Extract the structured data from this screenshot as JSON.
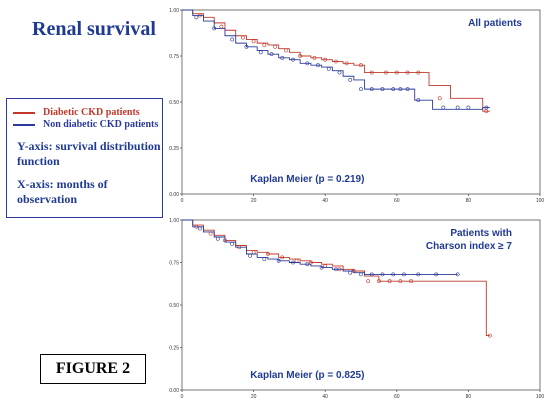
{
  "title": "Renal survival",
  "legend": [
    {
      "label": "Diabetic CKD patients",
      "color": "#c0392b"
    },
    {
      "label": "Non diabetic CKD patients",
      "color": "#2b3a9a"
    }
  ],
  "axis_notes": {
    "y": "Y-axis: survival distribution function",
    "x": "X-axis: months of observation"
  },
  "figure_label": "FIGURE 2",
  "colors": {
    "diabetic": "#c0392b",
    "nondiabetic": "#2b3a9a",
    "text": "#1f3a93"
  },
  "chart_data": [
    {
      "type": "line",
      "title": "All patients",
      "annotation": "Kaplan Meier (p = 0.219)",
      "xlim": [
        0,
        100
      ],
      "ylim": [
        0,
        1
      ],
      "xticks": [
        "0",
        "20",
        "40",
        "60",
        "80",
        "100"
      ],
      "yticks": [
        "0.00",
        "0.25",
        "0.50",
        "0.75",
        "1.00"
      ],
      "series": [
        {
          "name": "Diabetic CKD patients",
          "color": "#c0392b",
          "x": [
            0,
            3,
            6,
            9,
            12,
            15,
            18,
            21,
            24,
            27,
            30,
            33,
            36,
            39,
            42,
            45,
            48,
            51,
            56,
            60,
            69,
            75,
            84,
            86
          ],
          "y": [
            1.0,
            0.98,
            0.96,
            0.93,
            0.89,
            0.86,
            0.84,
            0.82,
            0.81,
            0.79,
            0.77,
            0.75,
            0.74,
            0.73,
            0.72,
            0.71,
            0.7,
            0.66,
            0.66,
            0.66,
            0.59,
            0.52,
            0.45,
            0.45
          ],
          "censored_x": [
            5,
            11,
            17,
            20,
            23,
            26,
            29,
            33,
            37,
            40,
            43,
            46,
            50,
            53,
            57,
            60,
            63,
            66,
            72,
            85
          ],
          "censored_y": [
            0.97,
            0.91,
            0.85,
            0.83,
            0.81,
            0.8,
            0.78,
            0.75,
            0.74,
            0.73,
            0.72,
            0.71,
            0.7,
            0.66,
            0.66,
            0.66,
            0.66,
            0.66,
            0.52,
            0.45
          ]
        },
        {
          "name": "Non diabetic CKD patients",
          "color": "#2b3a9a",
          "x": [
            0,
            3,
            6,
            9,
            12,
            15,
            18,
            21,
            24,
            27,
            30,
            33,
            36,
            39,
            42,
            45,
            48,
            51,
            55,
            60,
            65,
            70,
            75,
            84,
            86
          ],
          "y": [
            1.0,
            0.97,
            0.94,
            0.9,
            0.86,
            0.82,
            0.8,
            0.78,
            0.76,
            0.74,
            0.73,
            0.71,
            0.7,
            0.69,
            0.67,
            0.64,
            0.62,
            0.57,
            0.57,
            0.57,
            0.51,
            0.46,
            0.46,
            0.47,
            0.47
          ],
          "censored_x": [
            4,
            9,
            14,
            18,
            22,
            25,
            28,
            31,
            35,
            38,
            41,
            44,
            47,
            50,
            53,
            56,
            59,
            61,
            63,
            66,
            73,
            77,
            80,
            85
          ],
          "censored_y": [
            0.96,
            0.9,
            0.84,
            0.8,
            0.77,
            0.76,
            0.74,
            0.73,
            0.71,
            0.7,
            0.68,
            0.66,
            0.62,
            0.57,
            0.57,
            0.57,
            0.57,
            0.57,
            0.57,
            0.51,
            0.47,
            0.47,
            0.47,
            0.47
          ]
        }
      ]
    },
    {
      "type": "line",
      "title": "Patients with Charson index ≥ 7",
      "title_lines": [
        "Patients with",
        "Charson index ≥ 7"
      ],
      "annotation": "Kaplan Meier (p = 0.825)",
      "xlim": [
        0,
        100
      ],
      "ylim": [
        0,
        1
      ],
      "xticks": [
        "0",
        "20",
        "40",
        "60",
        "80",
        "100"
      ],
      "yticks": [
        "0.00",
        "0.25",
        "0.50",
        "0.75",
        "1.00"
      ],
      "series": [
        {
          "name": "Diabetic CKD patients",
          "color": "#c0392b",
          "x": [
            0,
            3,
            6,
            9,
            12,
            15,
            18,
            21,
            24,
            27,
            30,
            33,
            36,
            39,
            42,
            45,
            48,
            51,
            55,
            60,
            65,
            70,
            75,
            80,
            85,
            86
          ],
          "y": [
            1.0,
            0.97,
            0.94,
            0.91,
            0.88,
            0.85,
            0.82,
            0.81,
            0.8,
            0.78,
            0.77,
            0.76,
            0.75,
            0.74,
            0.73,
            0.71,
            0.7,
            0.67,
            0.64,
            0.64,
            0.64,
            0.64,
            0.64,
            0.64,
            0.32,
            0.32
          ],
          "censored_x": [
            4,
            8,
            12,
            16,
            20,
            24,
            28,
            32,
            36,
            40,
            44,
            48,
            52,
            55,
            58,
            61,
            64,
            86
          ],
          "censored_y": [
            0.96,
            0.92,
            0.88,
            0.84,
            0.81,
            0.8,
            0.78,
            0.76,
            0.75,
            0.73,
            0.71,
            0.7,
            0.64,
            0.64,
            0.64,
            0.64,
            0.64,
            0.32
          ]
        },
        {
          "name": "Non diabetic CKD patients",
          "color": "#2b3a9a",
          "x": [
            0,
            3,
            6,
            9,
            12,
            15,
            18,
            21,
            24,
            27,
            30,
            33,
            36,
            39,
            42,
            45,
            48,
            51,
            55,
            60,
            65,
            70,
            77
          ],
          "y": [
            1.0,
            0.96,
            0.93,
            0.9,
            0.87,
            0.84,
            0.8,
            0.78,
            0.77,
            0.76,
            0.75,
            0.74,
            0.73,
            0.72,
            0.71,
            0.7,
            0.69,
            0.68,
            0.68,
            0.68,
            0.68,
            0.68,
            0.68
          ],
          "censored_x": [
            5,
            10,
            14,
            19,
            23,
            27,
            31,
            35,
            39,
            43,
            47,
            50,
            53,
            56,
            59,
            62,
            66,
            71,
            77
          ],
          "censored_y": [
            0.95,
            0.89,
            0.86,
            0.79,
            0.77,
            0.76,
            0.75,
            0.74,
            0.72,
            0.71,
            0.69,
            0.68,
            0.68,
            0.68,
            0.68,
            0.68,
            0.68,
            0.68,
            0.68
          ]
        }
      ]
    }
  ]
}
